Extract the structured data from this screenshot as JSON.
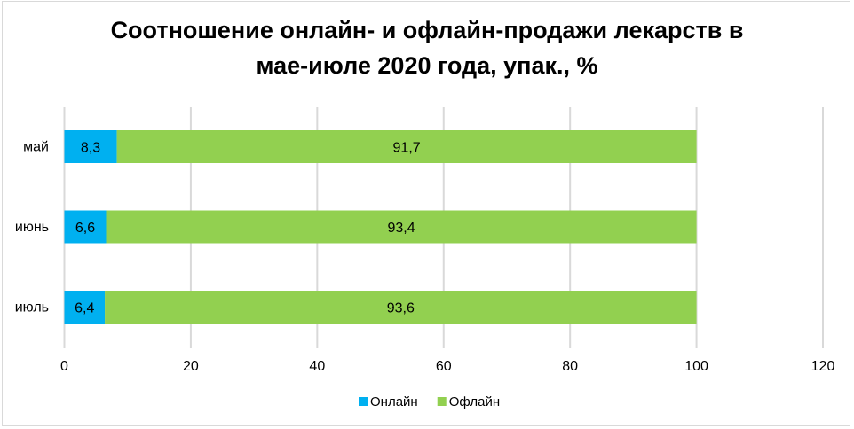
{
  "chart_data": {
    "type": "bar",
    "orientation": "horizontal",
    "stacked": true,
    "title_lines": [
      "Соотношение онлайн- и офлайн-продажи лекарств в",
      "мае-июле 2020 года, упак., %"
    ],
    "categories": [
      "май",
      "июнь",
      "июль"
    ],
    "series": [
      {
        "name": "Онлайн",
        "color": "#00B0F0",
        "values": [
          8.3,
          6.6,
          6.4
        ],
        "labels": [
          "8,3",
          "6,6",
          "6,4"
        ]
      },
      {
        "name": "Офлайн",
        "color": "#92D050",
        "values": [
          91.7,
          93.4,
          93.6
        ],
        "labels": [
          "91,7",
          "93,4",
          "93,6"
        ]
      }
    ],
    "xlim": [
      0,
      120
    ],
    "xticks": [
      0,
      20,
      40,
      60,
      80,
      100,
      120
    ],
    "grid": "vertical",
    "legend": "bottom"
  }
}
